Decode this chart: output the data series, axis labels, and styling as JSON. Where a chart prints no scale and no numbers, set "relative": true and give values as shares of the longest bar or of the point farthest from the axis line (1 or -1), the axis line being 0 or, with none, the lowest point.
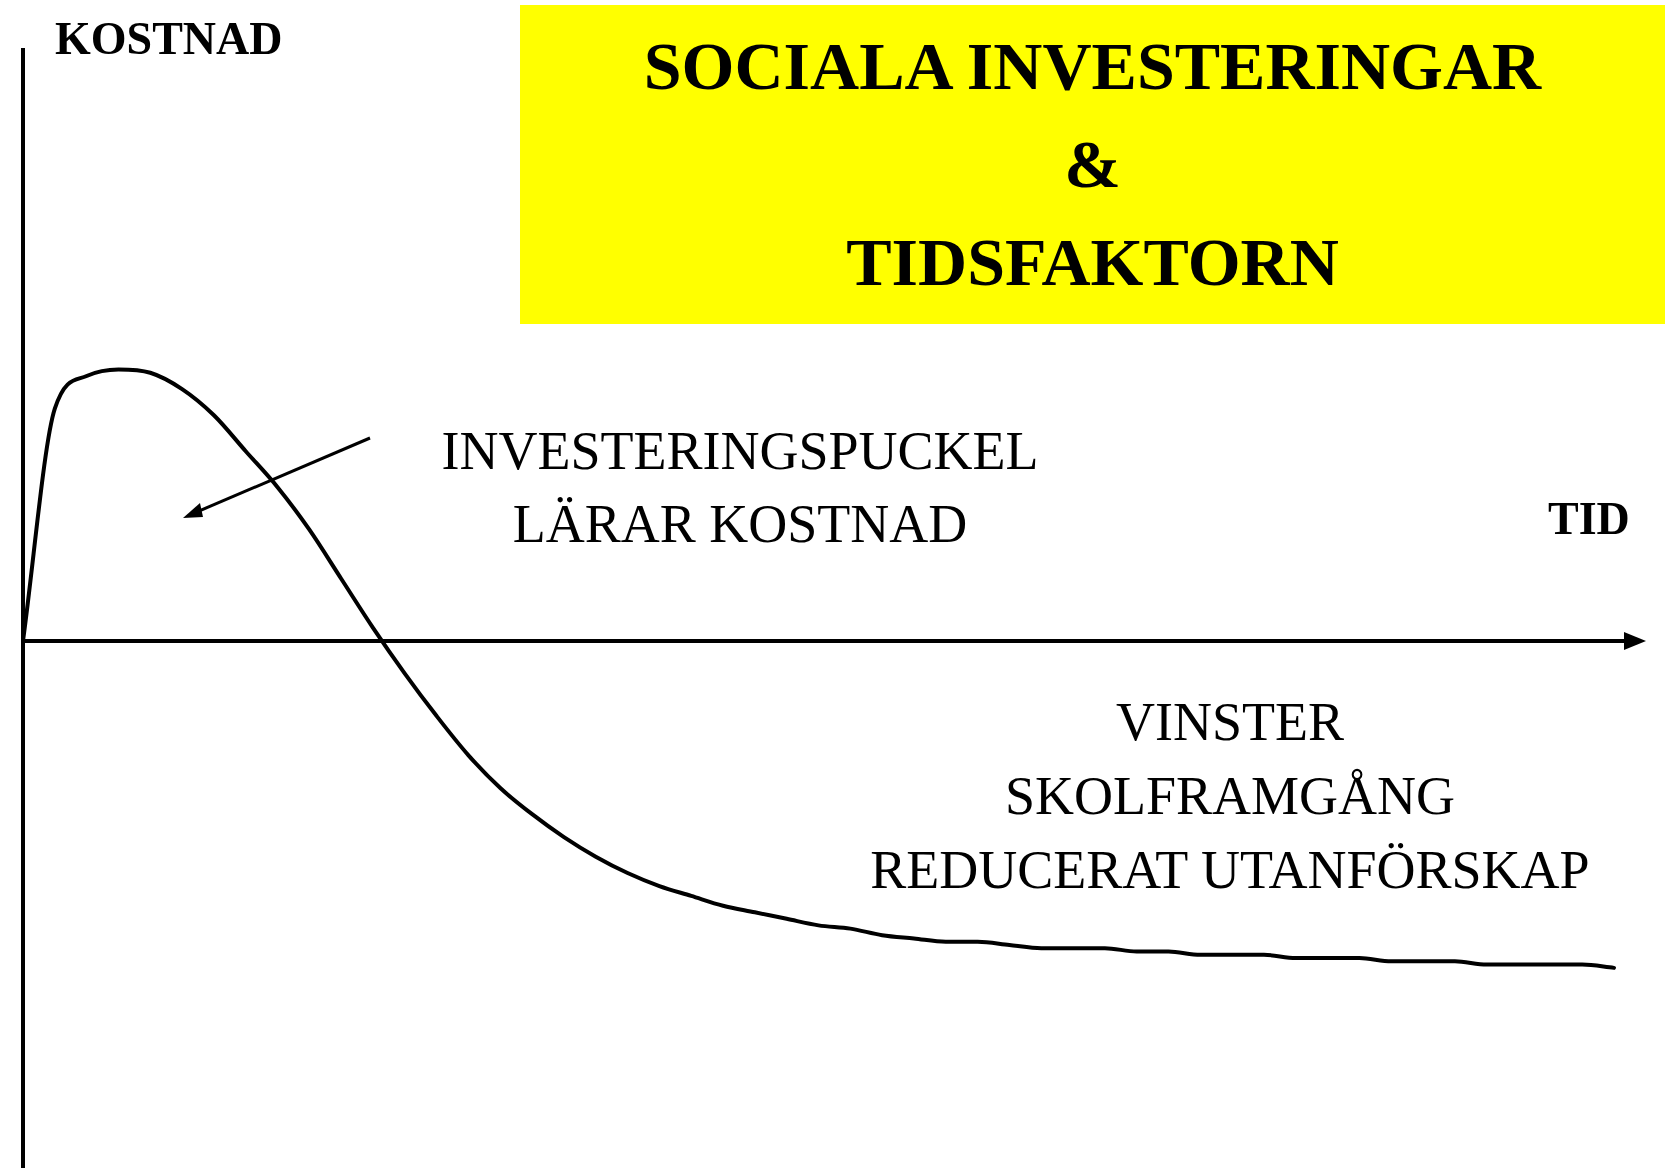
{
  "chart_data": {
    "type": "line",
    "relative": true,
    "title": "SOCIALA INVESTERINGAR\n&\nTIDSFAKTORN",
    "xlabel": "TID",
    "annotations": [
      "KOSTNAD",
      "INVESTERINGSPUCKEL\nLÄRAR KOSTNAD",
      "VINSTER\nSKOLFRAMGÅNG\nREDUCERAT UTANFÖRSKAP"
    ],
    "categories": [
      null,
      null,
      null,
      null,
      null,
      null,
      null,
      null,
      null,
      null,
      null,
      null,
      null,
      null,
      null,
      null,
      null,
      null,
      null,
      null,
      null,
      null,
      null,
      null,
      null,
      null,
      null,
      null,
      null,
      null,
      null,
      null,
      null,
      null,
      null,
      null,
      null,
      null,
      null,
      null,
      null,
      null,
      null,
      null,
      null,
      null,
      null,
      null,
      null,
      null,
      null
    ],
    "series": [
      {
        "color": "#000000",
        "values": [
          0,
          0.71,
          0.81,
          0.83,
          0.82,
          0.77,
          0.69,
          0.58,
          0.47,
          0.34,
          0.19,
          0.04,
          -0.1,
          -0.23,
          -0.35,
          -0.45,
          -0.53,
          -0.6,
          -0.66,
          -0.71,
          -0.75,
          -0.78,
          -0.81,
          -0.83,
          -0.85,
          -0.87,
          -0.88,
          -0.9,
          -0.91,
          -0.92,
          -0.92,
          -0.93,
          -0.94,
          -0.94,
          -0.94,
          -0.95,
          -0.95,
          -0.96,
          -0.96,
          -0.96,
          -0.97,
          -0.97,
          -0.97,
          -0.98,
          -0.98,
          -0.98,
          -0.99,
          -0.99,
          -0.99,
          -0.99,
          -1
        ]
      }
    ],
    "marker": "none",
    "line_style": "solid",
    "legend": false
  }
}
